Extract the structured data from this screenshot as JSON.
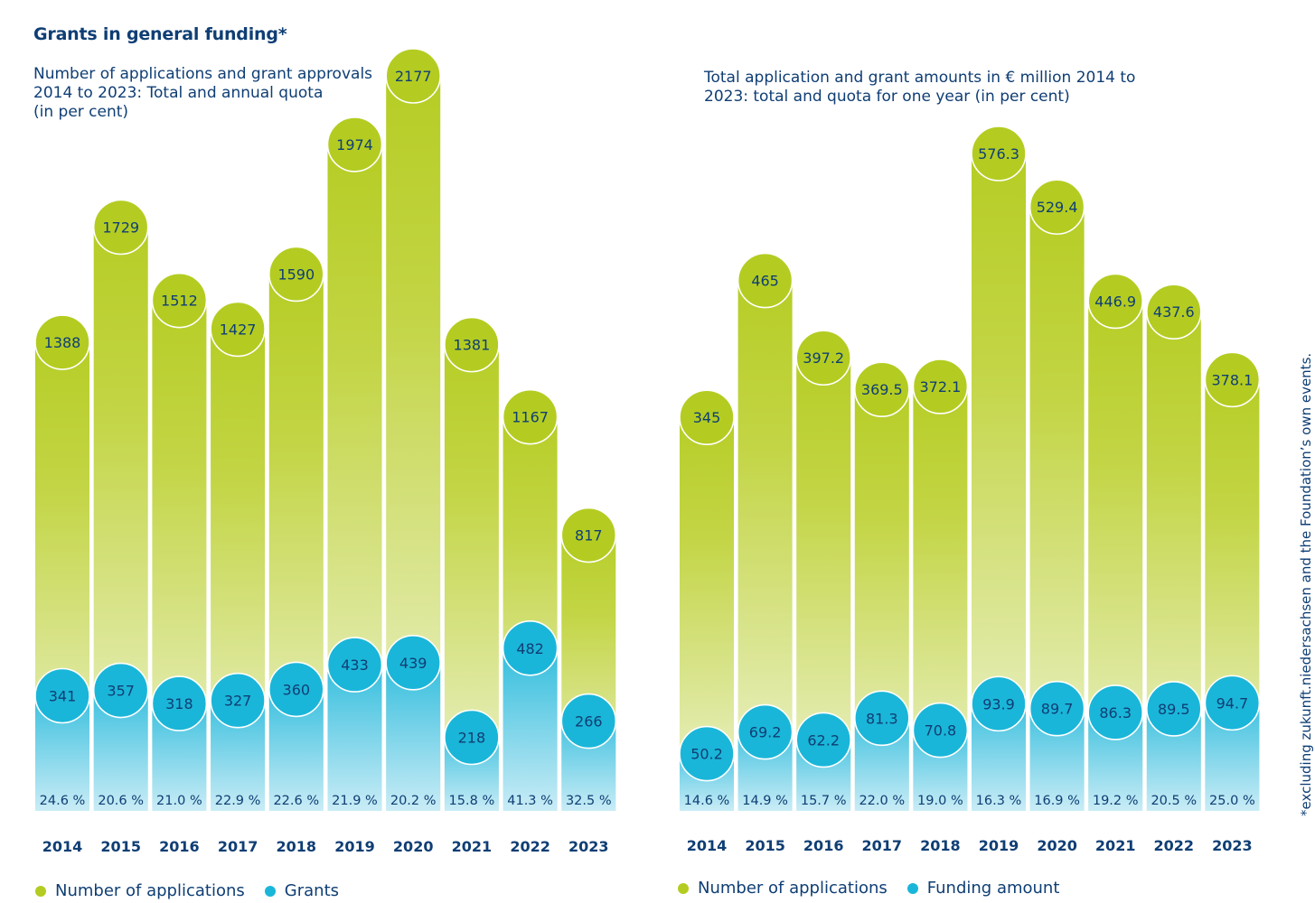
{
  "heading": "Grants in general funding*",
  "footnote": "*excluding zukunft.niedersachsen and the Foundation’s own events.",
  "colors": {
    "applications": "#b4cc21",
    "grants": "#1ab6d9",
    "text": "#0f3e74"
  },
  "chart_data": [
    {
      "type": "bar",
      "title_lines": [
        "Number of applications and grant approvals",
        "2014 to 2023: Total and annual quota",
        "(in per cent)"
      ],
      "categories": [
        "2014",
        "2015",
        "2016",
        "2017",
        "2018",
        "2019",
        "2020",
        "2021",
        "2022",
        "2023"
      ],
      "series": [
        {
          "name": "Number of applications",
          "values": [
            1388,
            1729,
            1512,
            1427,
            1590,
            1974,
            2177,
            1381,
            1167,
            817
          ],
          "labels": [
            "1388",
            "1729",
            "1512",
            "1427",
            "1590",
            "1974",
            "2177",
            "1381",
            "1167",
            "817"
          ]
        },
        {
          "name": "Grants",
          "values": [
            341,
            357,
            318,
            327,
            360,
            433,
            439,
            218,
            482,
            266
          ],
          "labels": [
            "341",
            "357",
            "318",
            "327",
            "360",
            "433",
            "439",
            "218",
            "482",
            "266"
          ]
        }
      ],
      "quota_labels": [
        "24.6 %",
        "20.6 %",
        "21.0 %",
        "22.9 %",
        "22.6 %",
        "21.9 %",
        "20.2 %",
        "15.8 %",
        "41.3 %",
        "32.5 %"
      ],
      "legend": [
        "Number of applications",
        "Grants"
      ],
      "ylim": [
        0,
        2177
      ]
    },
    {
      "type": "bar",
      "title_lines": [
        "Total application and grant amounts in € million 2014 to",
        "2023: total and quota for one year (in per cent)"
      ],
      "categories": [
        "2014",
        "2015",
        "2016",
        "2017",
        "2018",
        "2019",
        "2020",
        "2021",
        "2022",
        "2023"
      ],
      "series": [
        {
          "name": "Number of applications",
          "values": [
            345,
            465,
            397.2,
            369.5,
            372.1,
            576.3,
            529.4,
            446.9,
            437.6,
            378.1
          ],
          "labels": [
            "345",
            "465",
            "397.2",
            "369.5",
            "372.1",
            "576.3",
            "529.4",
            "446.9",
            "437.6",
            "378.1"
          ]
        },
        {
          "name": "Funding amount",
          "values": [
            50.2,
            69.2,
            62.2,
            81.3,
            70.8,
            93.9,
            89.7,
            86.3,
            89.5,
            94.7
          ],
          "labels": [
            "50.2",
            "69.2",
            "62.2",
            "81.3",
            "70.8",
            "93.9",
            "89.7",
            "86.3",
            "89.5",
            "94.7"
          ]
        }
      ],
      "quota_labels": [
        "14.6 %",
        "14.9 %",
        "15.7 %",
        "22.0 %",
        "19.0 %",
        "16.3 %",
        "16.9 %",
        "19.2 %",
        "20.5 %",
        "25.0 %"
      ],
      "legend": [
        "Number of applications",
        "Funding amount"
      ],
      "ylim": [
        0,
        576.3
      ]
    }
  ]
}
